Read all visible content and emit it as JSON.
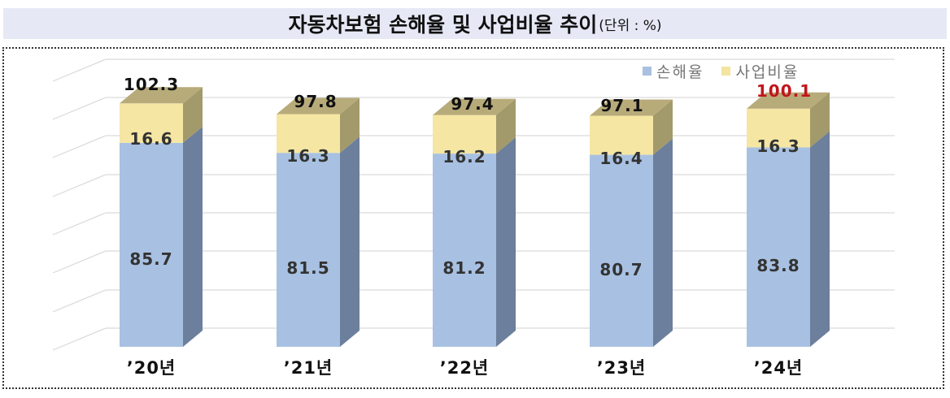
{
  "header": {
    "title": "자동차보험 손해율 및 사업비율 추이",
    "unit": "(단위 : %)"
  },
  "legend": {
    "items": [
      {
        "label": "손해율",
        "color": "#a9c0e0"
      },
      {
        "label": "사업비율",
        "color": "#f3e4a0"
      }
    ]
  },
  "colors": {
    "loss_front": "#a8c1e2",
    "loss_side": "#6c7f9c",
    "expense_front": "#f5e6a3",
    "expense_side": "#a39a6b",
    "expense_top": "#b8ab7a",
    "highlight_total": "#c0161c",
    "gridline": "#d9d9d9"
  },
  "chart_data": {
    "type": "bar",
    "stacked": true,
    "three_d": true,
    "title": "자동차보험 손해율 및 사업비율 추이",
    "subtitle": "(단위 : %)",
    "xlabel": "",
    "ylabel": "",
    "categories": [
      "’20년",
      "’21년",
      "’22년",
      "’23년",
      "’24년"
    ],
    "series": [
      {
        "name": "손해율",
        "values": [
          85.7,
          81.5,
          81.2,
          80.7,
          83.8
        ]
      },
      {
        "name": "사업비율",
        "values": [
          16.6,
          16.3,
          16.2,
          16.4,
          16.3
        ]
      }
    ],
    "totals": [
      102.3,
      97.8,
      97.4,
      97.1,
      100.1
    ],
    "highlighted_total_index": 4,
    "legend_position": "top-right",
    "grid": true,
    "y_axis_labels_visible": false
  },
  "labels": {
    "totals": [
      "102.3",
      "97.8",
      "97.4",
      "97.1",
      "100.1"
    ],
    "loss": [
      "85.7",
      "81.5",
      "81.2",
      "80.7",
      "83.8"
    ],
    "expense": [
      "16.6",
      "16.3",
      "16.2",
      "16.4",
      "16.3"
    ],
    "x": [
      "’20년",
      "’21년",
      "’22년",
      "’23년",
      "’24년"
    ]
  }
}
